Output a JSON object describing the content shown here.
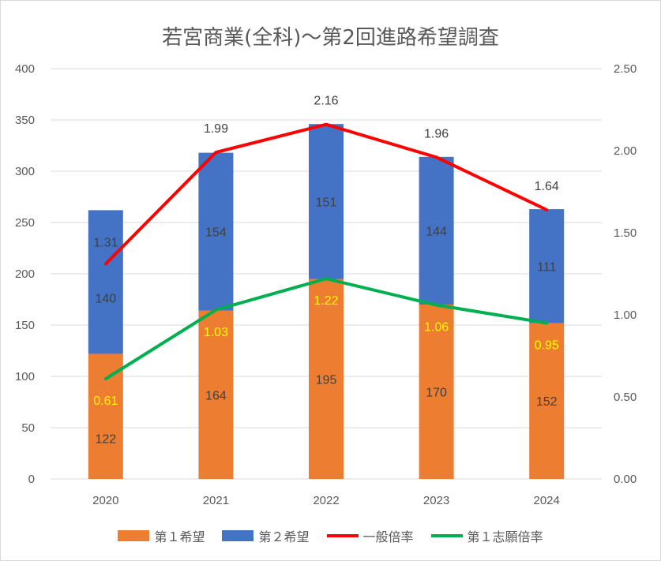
{
  "chart_data": {
    "type": "bar",
    "title": "若宮商業(全科)～第2回進路希望調査",
    "categories": [
      "2020",
      "2021",
      "2022",
      "2023",
      "2024"
    ],
    "series": [
      {
        "name": "第１希望",
        "kind": "stacked-bar",
        "axis": "left",
        "color": "#ED7D31",
        "values": [
          122,
          164,
          195,
          170,
          152
        ]
      },
      {
        "name": "第２希望",
        "kind": "stacked-bar",
        "axis": "left",
        "color": "#4472C4",
        "values": [
          140,
          154,
          151,
          144,
          111
        ]
      },
      {
        "name": "一般倍率",
        "kind": "line",
        "axis": "right",
        "color": "#FF0000",
        "values": [
          "1.31",
          "1.99",
          "2.16",
          "1.96",
          "1.64"
        ]
      },
      {
        "name": "第１志願倍率",
        "kind": "line",
        "axis": "right",
        "color": "#00B050",
        "values": [
          "0.61",
          "1.03",
          "1.22",
          "1.06",
          "0.95"
        ]
      }
    ],
    "y_left": {
      "ylim": [
        0,
        400
      ],
      "ticks": [
        "0",
        "50",
        "100",
        "150",
        "200",
        "250",
        "300",
        "350",
        "400"
      ]
    },
    "y_right": {
      "ylim": [
        0,
        2.5
      ],
      "ticks": [
        "0.00",
        "0.50",
        "1.00",
        "1.50",
        "2.00",
        "2.50"
      ]
    },
    "grid": true,
    "legend": "bottom"
  }
}
